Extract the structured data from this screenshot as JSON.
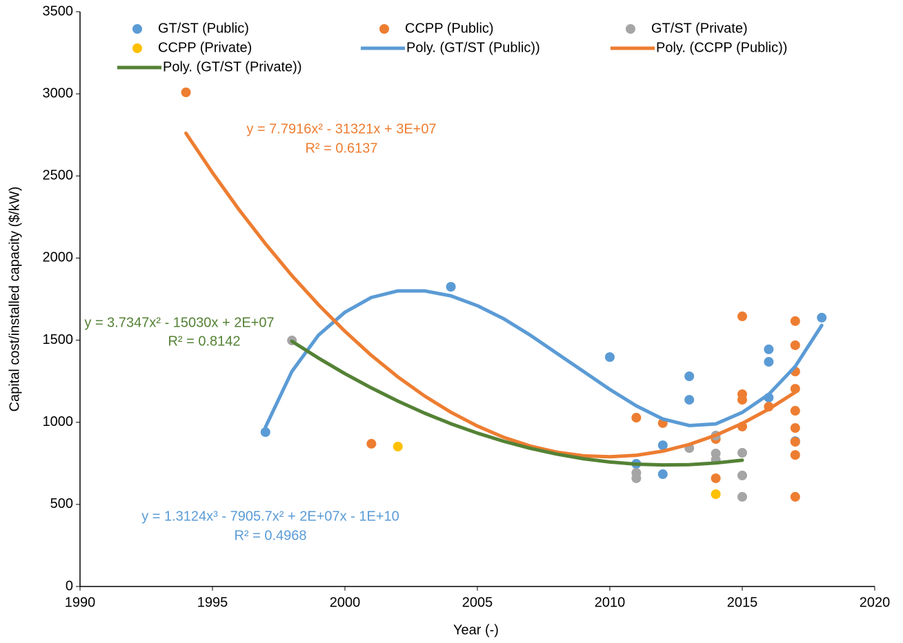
{
  "chart_data": {
    "type": "scatter",
    "x_label": "Year (-)",
    "y_label": "Capital cost/installed capacity ($/kW)",
    "xlim": [
      1990,
      2020
    ],
    "xticks": [
      1990,
      1995,
      2000,
      2005,
      2010,
      2015,
      2020
    ],
    "ylim": [
      0,
      3500
    ],
    "yticks": [
      0,
      500,
      1000,
      1500,
      2000,
      2500,
      3000,
      3500
    ],
    "grid": false,
    "legend": "top",
    "series": [
      {
        "name": "GT/ST (Public)",
        "mode": "markers",
        "color": "#5b9bd5",
        "x": [
          1997,
          2004,
          2010,
          2011,
          2012,
          2012,
          2013,
          2013,
          2016,
          2016,
          2016,
          2017,
          2018
        ],
        "values": [
          940,
          1825,
          1397,
          747,
          860,
          684,
          1280,
          1137,
          1444,
          1368,
          1150,
          885,
          1637
        ]
      },
      {
        "name": "CCPP (Public)",
        "mode": "markers",
        "color": "#ed7d31",
        "x": [
          1994,
          2001,
          2011,
          2012,
          2014,
          2014,
          2015,
          2015,
          2015,
          2015,
          2016,
          2017,
          2017,
          2017,
          2017,
          2017,
          2017,
          2017,
          2017,
          2017
        ],
        "values": [
          3009,
          869,
          1028,
          995,
          659,
          898,
          1645,
          1171,
          1137,
          974,
          1095,
          1616,
          1469,
          1309,
          1204,
          1070,
          965,
          881,
          801,
          546
        ]
      },
      {
        "name": "GT/ST (Private)",
        "mode": "markers",
        "color": "#a5a5a5",
        "x": [
          1998,
          2011,
          2011,
          2013,
          2014,
          2014,
          2014,
          2015,
          2015,
          2015
        ],
        "values": [
          1498,
          692,
          659,
          843,
          919,
          810,
          772,
          814,
          676,
          546
        ]
      },
      {
        "name": "CCPP (Private)",
        "mode": "markers",
        "color": "#ffc000",
        "x": [
          2002,
          2014
        ],
        "values": [
          852,
          562
        ]
      },
      {
        "name": "Poly. (GT/ST (Public))",
        "mode": "line",
        "color": "#5b9bd5",
        "x": [
          1997,
          1998,
          1999,
          2000,
          2001,
          2002,
          2003,
          2004,
          2005,
          2006,
          2007,
          2008,
          2009,
          2010,
          2011,
          2012,
          2013,
          2014,
          2015,
          2016,
          2017,
          2018
        ],
        "values": [
          970,
          1310,
          1530,
          1670,
          1760,
          1800,
          1800,
          1770,
          1710,
          1630,
          1530,
          1420,
          1310,
          1200,
          1100,
          1020,
          980,
          990,
          1060,
          1170,
          1340,
          1590
        ]
      },
      {
        "name": "Poly. (CCPP (Public))",
        "mode": "line",
        "color": "#ed7d31",
        "x": [
          1994,
          1995,
          1996,
          1997,
          1998,
          1999,
          2000,
          2001,
          2002,
          2003,
          2004,
          2005,
          2006,
          2007,
          2008,
          2009,
          2010,
          2011,
          2012,
          2013,
          2014,
          2015,
          2016,
          2017
        ],
        "values": [
          2760,
          2520,
          2295,
          2087,
          1893,
          1716,
          1554,
          1407,
          1276,
          1161,
          1061,
          977,
          908,
          855,
          818,
          796,
          790,
          799,
          824,
          865,
          921,
          993,
          1080,
          1183
        ]
      },
      {
        "name": "Poly. (GT/ST (Private))",
        "mode": "line",
        "color": "#548235",
        "x": [
          1998,
          1999,
          2000,
          2001,
          2002,
          2003,
          2004,
          2005,
          2006,
          2007,
          2008,
          2009,
          2010,
          2011,
          2012,
          2013,
          2014,
          2015
        ],
        "values": [
          1493,
          1391,
          1296,
          1209,
          1129,
          1056,
          991,
          934,
          884,
          841,
          806,
          778,
          758,
          745,
          740,
          742,
          752,
          769
        ]
      }
    ],
    "annotations": [
      {
        "text": "y = 7.7916x² - 31321x + 3E+07",
        "color": "#ed7d31"
      },
      {
        "text": "R² = 0.6137",
        "color": "#ed7d31"
      },
      {
        "text": "y = 3.7347x² - 15030x + 2E+07",
        "color": "#548235"
      },
      {
        "text": "R² = 0.8142",
        "color": "#548235"
      },
      {
        "text": "y = 1.3124x³ - 7905.7x² + 2E+07x - 1E+10",
        "color": "#5b9bd5"
      },
      {
        "text": "R² = 0.4968",
        "color": "#5b9bd5"
      }
    ]
  }
}
